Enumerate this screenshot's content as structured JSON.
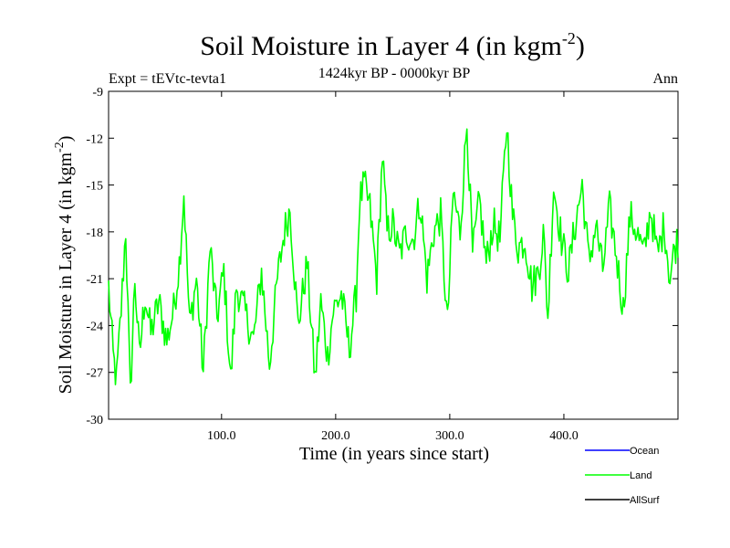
{
  "chart_data": {
    "type": "line",
    "title": "Soil Moisture in Layer 4 (in kgm",
    "title_sup": "-2",
    "title_end": ")",
    "subtitle": "1424kyr BP - 0000kyr BP",
    "expt_label": "Expt = tEVtc-tevta1",
    "period_label": "Ann",
    "xlabel": "Time (in years since start)",
    "ylabel": "Soil Moisture in Layer 4 (in kgm",
    "ylabel_sup": "-2",
    "ylabel_end": ")",
    "xlim": [
      1,
      500
    ],
    "ylim": [
      -30,
      -9
    ],
    "xticks": [
      100,
      200,
      300,
      400
    ],
    "xtick_labels": [
      "100.0",
      "200.0",
      "300.0",
      "400.0"
    ],
    "yticks": [
      -9,
      -12,
      -15,
      -18,
      -21,
      -24,
      -27,
      -30
    ],
    "ytick_labels": [
      "-9",
      "-12",
      "-15",
      "-18",
      "-21",
      "-24",
      "-27",
      "-30"
    ],
    "legend": [
      {
        "name": "Ocean",
        "color": "#0000ff"
      },
      {
        "name": "Land",
        "color": "#00ff00"
      },
      {
        "name": "AllSurf",
        "color": "#000000"
      }
    ],
    "series": [
      {
        "name": "Land",
        "color": "#00ff00",
        "anchors_x": [
          1,
          5,
          8,
          12,
          16,
          20,
          24,
          28,
          33,
          38,
          45,
          52,
          58,
          63,
          67,
          72,
          78,
          84,
          90,
          96,
          102,
          108,
          113,
          120,
          128,
          135,
          142,
          149,
          155,
          160,
          167,
          175,
          182,
          187,
          193,
          198,
          205,
          212,
          218,
          221,
          225,
          230,
          236,
          241,
          245,
          250,
          256,
          262,
          268,
          274,
          280,
          286,
          292,
          298,
          303,
          309,
          315,
          320,
          326,
          332,
          338,
          344,
          350,
          355,
          360,
          366,
          372,
          378,
          382,
          386,
          391,
          398,
          404,
          410,
          416,
          422,
          428,
          434,
          440,
          446,
          452,
          458,
          464,
          470,
          476,
          482,
          488,
          493,
          497,
          500
        ],
        "anchors_y": [
          -21.5,
          -26.0,
          -27.5,
          -23.0,
          -17.8,
          -28.5,
          -21.0,
          -26.0,
          -22.0,
          -24.5,
          -22.5,
          -25.0,
          -23.0,
          -20.0,
          -15.5,
          -24.0,
          -21.0,
          -27.0,
          -19.0,
          -23.5,
          -20.5,
          -27.5,
          -21.5,
          -23.0,
          -25.0,
          -20.5,
          -26.5,
          -21.0,
          -18.0,
          -16.5,
          -24.0,
          -20.0,
          -27.5,
          -22.5,
          -26.0,
          -23.0,
          -22.0,
          -25.5,
          -22.0,
          -16.0,
          -15.0,
          -16.5,
          -21.0,
          -13.0,
          -18.0,
          -17.5,
          -19.5,
          -18.0,
          -18.5,
          -16.0,
          -21.0,
          -18.0,
          -17.0,
          -24.0,
          -15.5,
          -18.0,
          -11.0,
          -19.5,
          -16.0,
          -20.0,
          -17.5,
          -18.5,
          -11.0,
          -17.0,
          -19.0,
          -18.5,
          -21.5,
          -20.5,
          -18.0,
          -23.5,
          -15.0,
          -18.5,
          -20.5,
          -17.5,
          -15.0,
          -20.0,
          -17.5,
          -20.5,
          -16.5,
          -19.5,
          -23.0,
          -17.0,
          -18.0,
          -19.5,
          -16.5,
          -19.5,
          -17.5,
          -21.0,
          -19.0,
          -18.5
        ]
      }
    ]
  }
}
